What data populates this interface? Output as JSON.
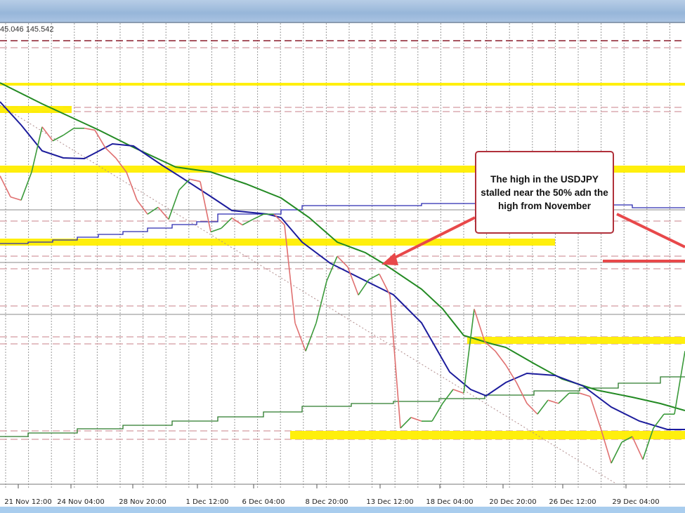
{
  "header": {
    "quote_text": "45.046 145.542"
  },
  "annotation": {
    "text": "The high in the USDJPY stalled near the 50% adn the high from November"
  },
  "colors": {
    "bull": "#3a9a3a",
    "bear": "#e07070",
    "ma_blue": "#1c1c9c",
    "ma_green": "#238a23",
    "zone": "#ffee00",
    "arrow": "#e8484a"
  },
  "chart_data": {
    "type": "line",
    "title": "",
    "xlabel": "",
    "ylabel": "",
    "ylim": [
      140.22,
      150.09
    ],
    "grid": true,
    "x_tick_labels": [
      "21 Nov 12:00",
      "24 Nov 04:00",
      "28 Nov 20:00",
      "1 Dec 12:00",
      "6 Dec 04:00",
      "8 Dec 20:00",
      "13 Dec 12:00",
      "18 Dec 04:00",
      "20 Dec 20:00",
      "26 Dec 12:00",
      "29 Dec 04:00"
    ],
    "series": [
      {
        "values": [
          146.82,
          146.37,
          146.3,
          146.9,
          147.87,
          147.57,
          147.69,
          147.84,
          147.84,
          147.8,
          147.42,
          147.2,
          146.9,
          146.3,
          146.0,
          146.15,
          145.89,
          146.52,
          146.75,
          146.7,
          145.62,
          145.7,
          145.92,
          145.77,
          145.89,
          146.0,
          146.0,
          145.77,
          143.67,
          143.07,
          143.67,
          144.57,
          145.1,
          144.87,
          144.27,
          144.6,
          144.72,
          144.27,
          141.42,
          141.65,
          141.57,
          141.57,
          141.95,
          142.25,
          142.17,
          143.97,
          143.27,
          143.07,
          142.77,
          142.4,
          141.95,
          141.72,
          142.02,
          141.95,
          142.17,
          142.17,
          142.1,
          141.42,
          140.67,
          141.12,
          141.24,
          140.75,
          141.42,
          141.72,
          141.72,
          143.07
        ]
      }
    ]
  }
}
